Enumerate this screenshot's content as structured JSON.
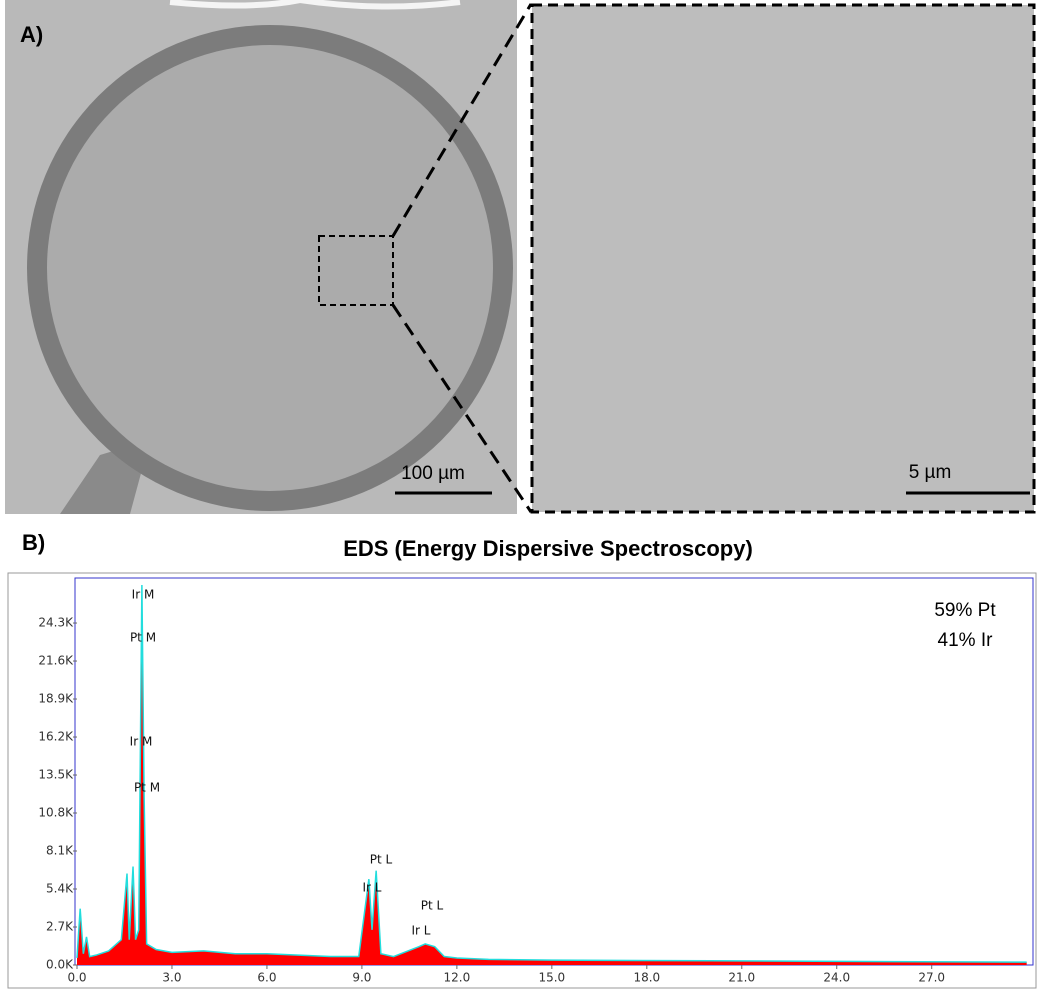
{
  "panel_a": {
    "label": "A)",
    "scale_left": "100 µm",
    "scale_right": "5 µm"
  },
  "panel_b": {
    "label": "B)"
  },
  "chart_data": {
    "type": "area",
    "title": "EDS (Energy Dispersive Spectroscopy)",
    "x": [
      0.0,
      0.1,
      0.2,
      0.3,
      0.4,
      0.6,
      1.0,
      1.4,
      1.58,
      1.65,
      1.77,
      1.85,
      1.95,
      2.05,
      2.12,
      2.2,
      2.5,
      3.0,
      4.0,
      5.0,
      6.0,
      7.0,
      8.0,
      8.9,
      9.22,
      9.32,
      9.45,
      9.6,
      10.0,
      10.8,
      11.0,
      11.3,
      11.6,
      12.0,
      13.0,
      15.0,
      20.0,
      25.0,
      30.0
    ],
    "values": [
      500,
      4000,
      800,
      2000,
      600,
      700,
      1000,
      1800,
      6500,
      1800,
      7000,
      1800,
      2500,
      27000,
      12000,
      1500,
      1100,
      900,
      1000,
      800,
      800,
      700,
      600,
      600,
      6100,
      2500,
      6700,
      800,
      600,
      1300,
      1500,
      1300,
      600,
      500,
      400,
      350,
      300,
      250,
      200
    ],
    "color": "#ff0000",
    "line_color": "#22dddd",
    "xlim": [
      0,
      30.2
    ],
    "ylim": [
      0,
      27500
    ],
    "xticks": [
      {
        "value": 0,
        "label": "0.0"
      },
      {
        "value": 3,
        "label": "3.0"
      },
      {
        "value": 6,
        "label": "6.0"
      },
      {
        "value": 9,
        "label": "9.0"
      },
      {
        "value": 12,
        "label": "12.0"
      },
      {
        "value": 15,
        "label": "15.0"
      },
      {
        "value": 18,
        "label": "18.0"
      },
      {
        "value": 21,
        "label": "21.0"
      },
      {
        "value": 24,
        "label": "24.0"
      },
      {
        "value": 27,
        "label": "27.0"
      }
    ],
    "yticks": [
      {
        "value": 0,
        "label": "0.0K"
      },
      {
        "value": 2700,
        "label": "2.7K"
      },
      {
        "value": 5400,
        "label": "5.4K"
      },
      {
        "value": 8100,
        "label": "8.1K"
      },
      {
        "value": 10800,
        "label": "10.8K"
      },
      {
        "value": 13500,
        "label": "13.5K"
      },
      {
        "value": 16200,
        "label": "16.2K"
      },
      {
        "value": 18900,
        "label": "18.9K"
      },
      {
        "value": 21600,
        "label": "21.6K"
      },
      {
        "value": 24300,
        "label": "24.3K"
      }
    ],
    "annotations": [
      "Ir M",
      "Pt M",
      "Ir M",
      "Pt M",
      "Pt L",
      "Ir L",
      "Pt L",
      "Ir L"
    ],
    "composition": [
      "59% Pt",
      "41% Ir"
    ]
  }
}
